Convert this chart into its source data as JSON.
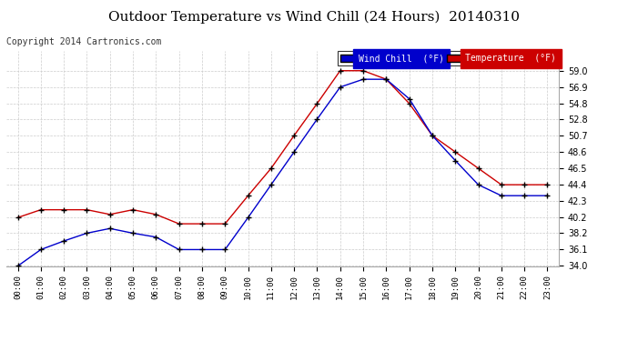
{
  "title": "Outdoor Temperature vs Wind Chill (24 Hours)  20140310",
  "copyright": "Copyright 2014 Cartronics.com",
  "background_color": "#ffffff",
  "plot_background": "#ffffff",
  "grid_color": "#cccccc",
  "hours": [
    0,
    1,
    2,
    3,
    4,
    5,
    6,
    7,
    8,
    9,
    10,
    11,
    12,
    13,
    14,
    15,
    16,
    17,
    18,
    19,
    20,
    21,
    22,
    23
  ],
  "temperature": [
    40.2,
    41.2,
    41.2,
    41.2,
    40.6,
    41.2,
    40.6,
    39.4,
    39.4,
    39.4,
    43.0,
    46.5,
    50.7,
    54.8,
    59.0,
    59.0,
    57.9,
    54.8,
    50.7,
    48.6,
    46.5,
    44.4,
    44.4,
    44.4
  ],
  "wind_chill": [
    34.0,
    36.1,
    37.2,
    38.2,
    38.8,
    38.2,
    37.7,
    36.1,
    36.1,
    36.1,
    40.2,
    44.4,
    48.6,
    52.8,
    56.9,
    57.9,
    57.9,
    55.4,
    50.7,
    47.5,
    44.4,
    43.0,
    43.0,
    43.0
  ],
  "temp_color": "#cc0000",
  "wind_chill_color": "#0000cc",
  "ylim_min": 34.0,
  "ylim_max": 61.5,
  "yticks": [
    34.0,
    36.1,
    38.2,
    40.2,
    42.3,
    44.4,
    46.5,
    48.6,
    50.7,
    52.8,
    54.8,
    56.9,
    59.0
  ],
  "title_fontsize": 11,
  "copyright_fontsize": 7,
  "legend_wind_label": "Wind Chill  (°F)",
  "legend_temp_label": "Temperature  (°F)"
}
